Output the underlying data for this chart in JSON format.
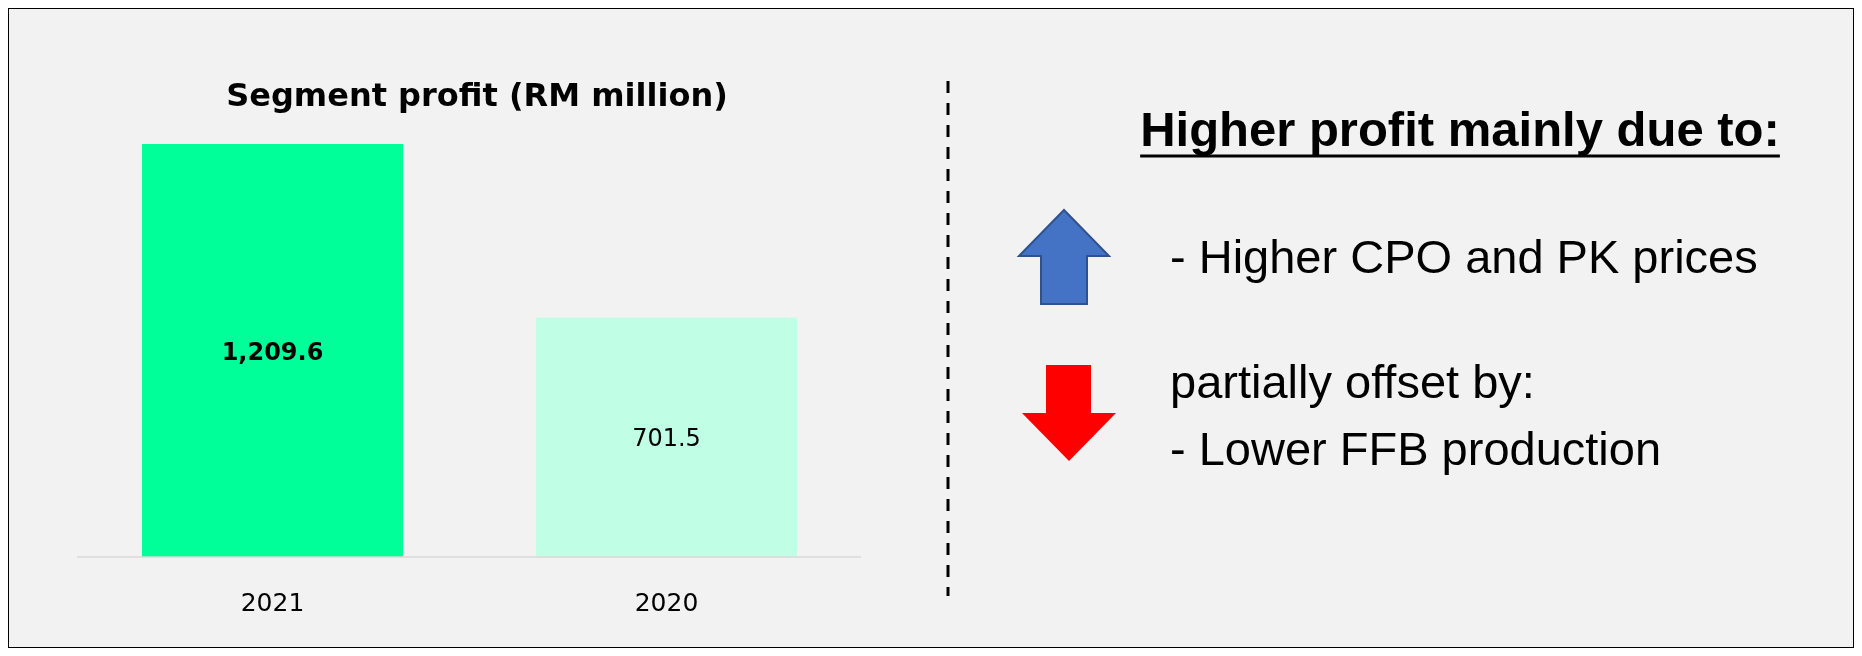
{
  "chart_data": [
    {
      "type": "bar",
      "title": "Segment profit (RM million)",
      "categories": [
        "2021",
        "2020"
      ],
      "values": [
        1209.6,
        701.5
      ],
      "colors": [
        "#00ff99",
        "#c0ffe6"
      ],
      "value_labels": [
        "1,209.6",
        "701.5"
      ]
    },
    {
      "type": "other",
      "title": "Higher profit mainly due to:",
      "annotations": [
        "- Higher CPO and PK prices",
        "partially offset by:",
        "- Lower FFB production"
      ]
    }
  ]
}
